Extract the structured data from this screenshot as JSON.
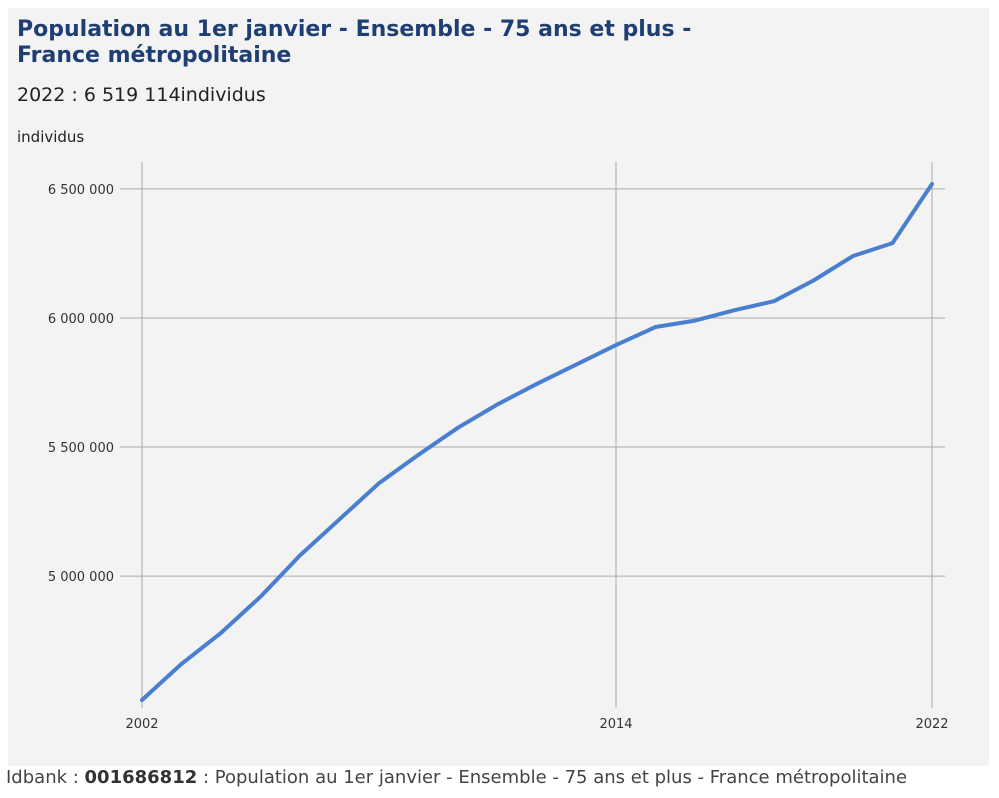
{
  "title": "Population au 1er janvier - Ensemble - 75 ans et plus - France métropolitaine",
  "subtitle": "2022 : 6 519 114individus",
  "footer": {
    "prefix": "Idbank : ",
    "idbank": "001686812",
    "suffix": " : Population au 1er janvier - Ensemble - 75 ans et plus - France métropolitaine"
  },
  "colors": {
    "line": "#4a7fcf",
    "title": "#1f3e73",
    "grid": "#aaaaaa"
  },
  "chart_data": {
    "type": "line",
    "ylabel": "individus",
    "ylim": [
      4520000,
      6550000
    ],
    "xlim": [
      2002,
      2022
    ],
    "yticks": [
      5000000,
      5500000,
      6000000,
      6500000
    ],
    "ytick_labels": [
      "5 000 000",
      "5 500 000",
      "6 000 000",
      "6 500 000"
    ],
    "xticks": [
      2002,
      2014,
      2022
    ],
    "xtick_labels": [
      "2002",
      "2014",
      "2022"
    ],
    "grid": true,
    "x": [
      2002,
      2003,
      2004,
      2005,
      2006,
      2007,
      2008,
      2009,
      2010,
      2011,
      2012,
      2013,
      2014,
      2015,
      2016,
      2017,
      2018,
      2019,
      2020,
      2021,
      2022
    ],
    "values": [
      4520000,
      4660000,
      4780000,
      4920000,
      5080000,
      5220000,
      5360000,
      5470000,
      5575000,
      5665000,
      5745000,
      5820000,
      5895000,
      5965000,
      5990000,
      6030000,
      6065000,
      6145000,
      6240000,
      6290000,
      6519114
    ]
  }
}
